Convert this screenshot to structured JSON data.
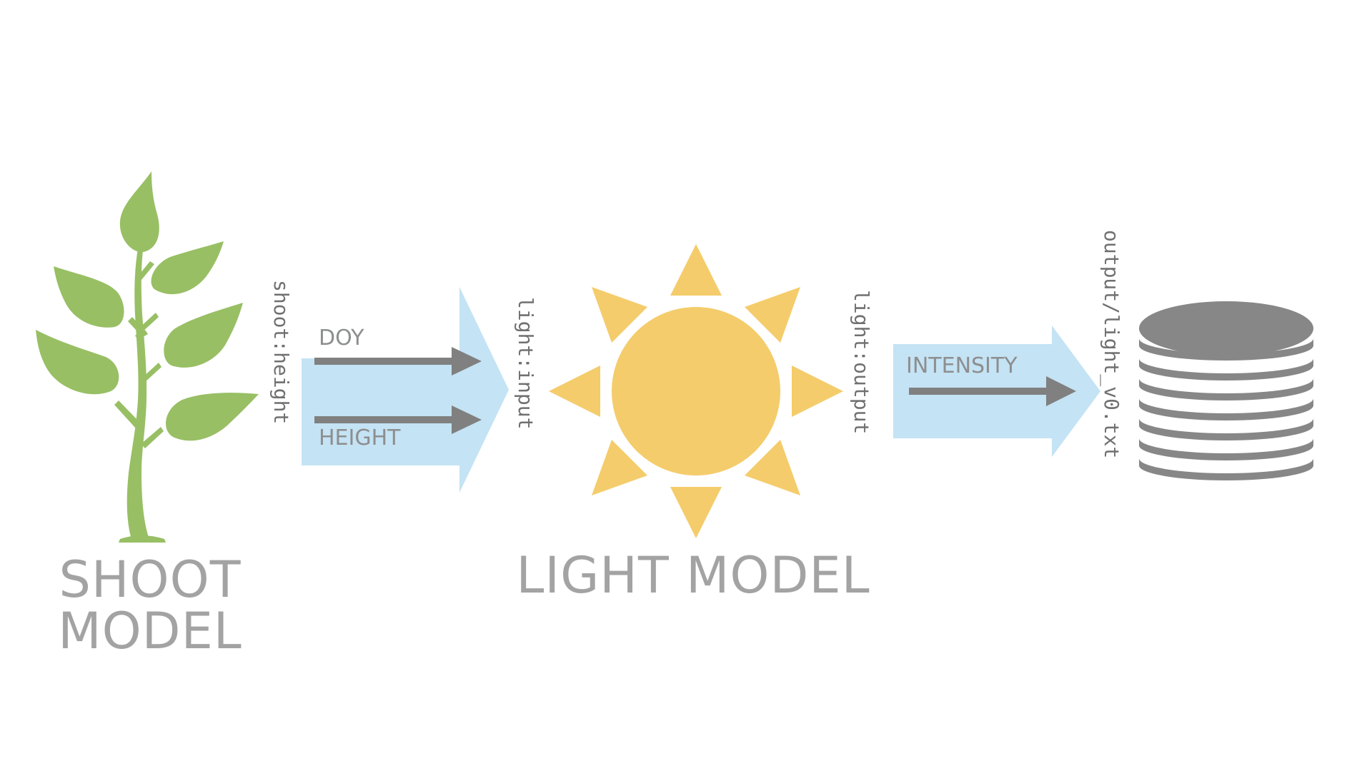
{
  "nodes": {
    "shoot": {
      "label_line1": "SHOOT",
      "label_line2": "MODEL",
      "icon": "plant-icon"
    },
    "light": {
      "label": "LIGHT MODEL",
      "icon": "sun-icon"
    },
    "output": {
      "icon": "database-icon"
    }
  },
  "ports": {
    "shoot_output": "shoot:height",
    "light_input": "light:input",
    "light_output": "light:output",
    "output_file": "output/light_v0.txt"
  },
  "edges": {
    "shoot_to_light": {
      "signals": [
        "DOY",
        "HEIGHT"
      ]
    },
    "light_to_output": {
      "signals": [
        "INTENSITY"
      ]
    }
  },
  "colors": {
    "plant": "#98bf64",
    "sun": "#f4cc6b",
    "database": "#878787",
    "flow": "#c4e3f4",
    "signal_arrow": "#808080",
    "label_text": "#a3a3a3"
  }
}
